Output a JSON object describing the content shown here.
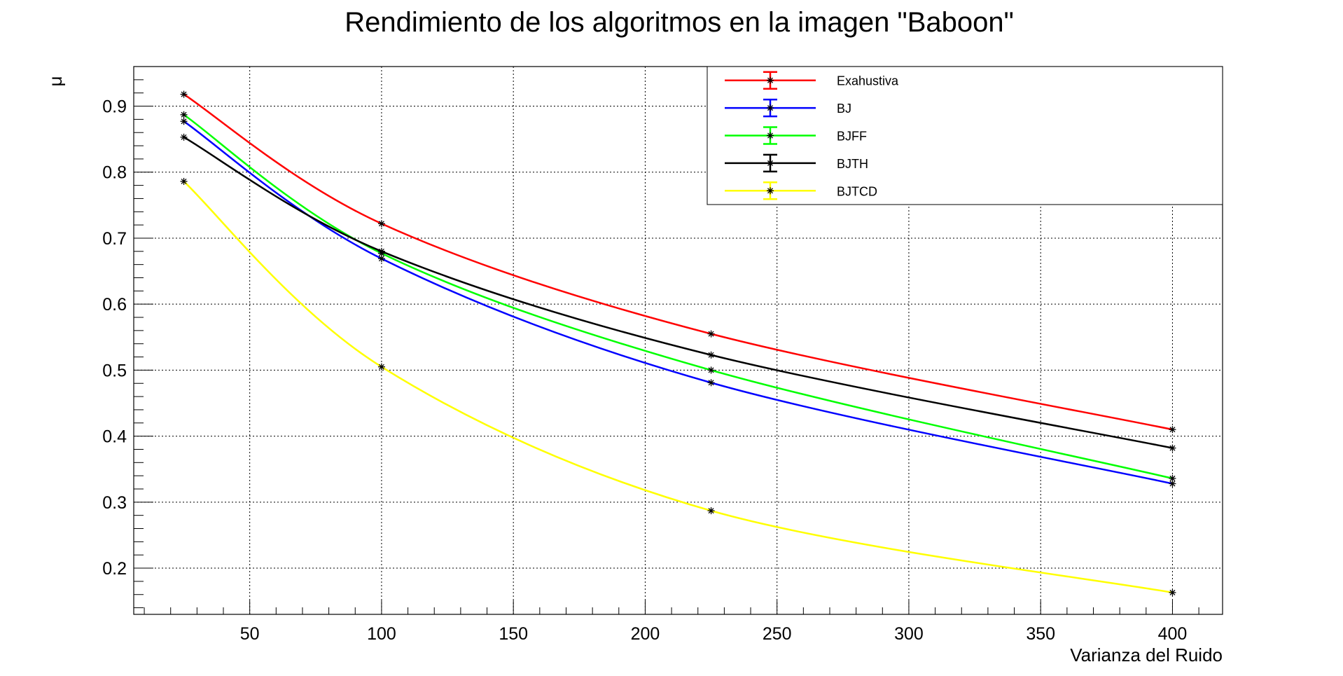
{
  "chart_data": {
    "type": "line",
    "title": "Rendimiento de los algoritmos en la imagen \"Baboon\"",
    "xlabel": "Varianza del Ruido",
    "ylabel": "μ",
    "x": [
      25,
      100,
      225,
      400
    ],
    "xlim": [
      6,
      419
    ],
    "ylim": [
      0.13,
      0.96
    ],
    "xticks": [
      50,
      100,
      150,
      200,
      250,
      300,
      350,
      400
    ],
    "yticks": [
      0.2,
      0.3,
      0.4,
      0.5,
      0.6,
      0.7,
      0.8,
      0.9
    ],
    "grid": true,
    "legend_position": "top-right",
    "series": [
      {
        "name": "Exahustiva",
        "color": "#ff0000",
        "values": [
          0.918,
          0.722,
          0.555,
          0.41
        ]
      },
      {
        "name": "BJ",
        "color": "#0000ff",
        "values": [
          0.877,
          0.669,
          0.481,
          0.328
        ]
      },
      {
        "name": "BJFF",
        "color": "#00ff00",
        "values": [
          0.887,
          0.677,
          0.5,
          0.336
        ]
      },
      {
        "name": "BJTH",
        "color": "#000000",
        "values": [
          0.853,
          0.68,
          0.523,
          0.382
        ]
      },
      {
        "name": "BJTCD",
        "color": "#ffff00",
        "values": [
          0.786,
          0.505,
          0.287,
          0.163
        ]
      }
    ]
  }
}
